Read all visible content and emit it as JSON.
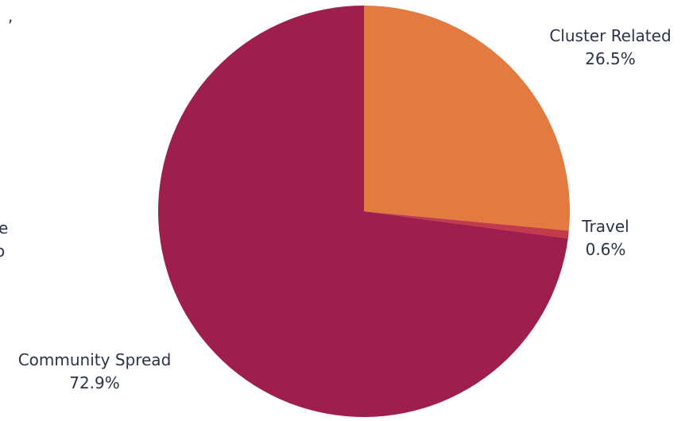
{
  "chart_data": {
    "type": "pie",
    "title": "",
    "start_angle_deg": 0,
    "direction": "clockwise",
    "slices": [
      {
        "name": "Cluster Related",
        "value": 26.5,
        "label": "26.5%",
        "color": "#E37A3F"
      },
      {
        "name": "Travel",
        "value": 0.6,
        "label": "0.6%",
        "color": "#C23B4A"
      },
      {
        "name": "Community Spread",
        "value": 72.9,
        "label": "72.9%",
        "color": "#9E1F4E"
      }
    ]
  },
  "clipped_text": {
    "comma": ",",
    "e": "e",
    "o": "o"
  }
}
